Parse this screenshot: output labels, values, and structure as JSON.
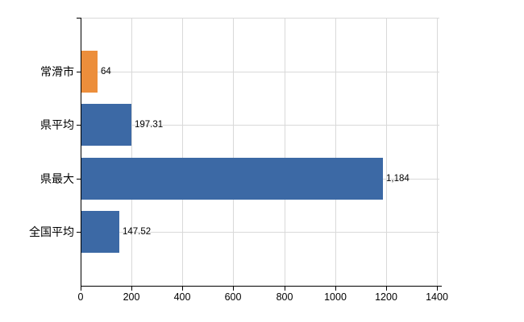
{
  "chart_data": {
    "type": "bar",
    "orientation": "horizontal",
    "title": "",
    "xlabel": "",
    "ylabel": "",
    "categories": [
      "常滑市",
      "県平均",
      "県最大",
      "全国平均"
    ],
    "values": [
      64,
      197.31,
      1184,
      147.52
    ],
    "value_labels": [
      "64",
      "197.31",
      "1,184",
      "147.52"
    ],
    "bar_colors": [
      "#EC8E3B",
      "#3C69A5",
      "#3C69A5",
      "#3C69A5"
    ],
    "xlim": [
      0,
      1400
    ],
    "x_ticks": [
      0,
      200,
      400,
      600,
      800,
      1000,
      1200,
      1400
    ],
    "x_tick_labels": [
      "0",
      "200",
      "400",
      "600",
      "800",
      "1000",
      "1200",
      "1400"
    ],
    "grid": true,
    "legend_position": "none",
    "colors": {
      "background": "#FFFFFF",
      "gridline": "#D9D9D9",
      "axis": "#000000",
      "text": "#000000"
    }
  }
}
